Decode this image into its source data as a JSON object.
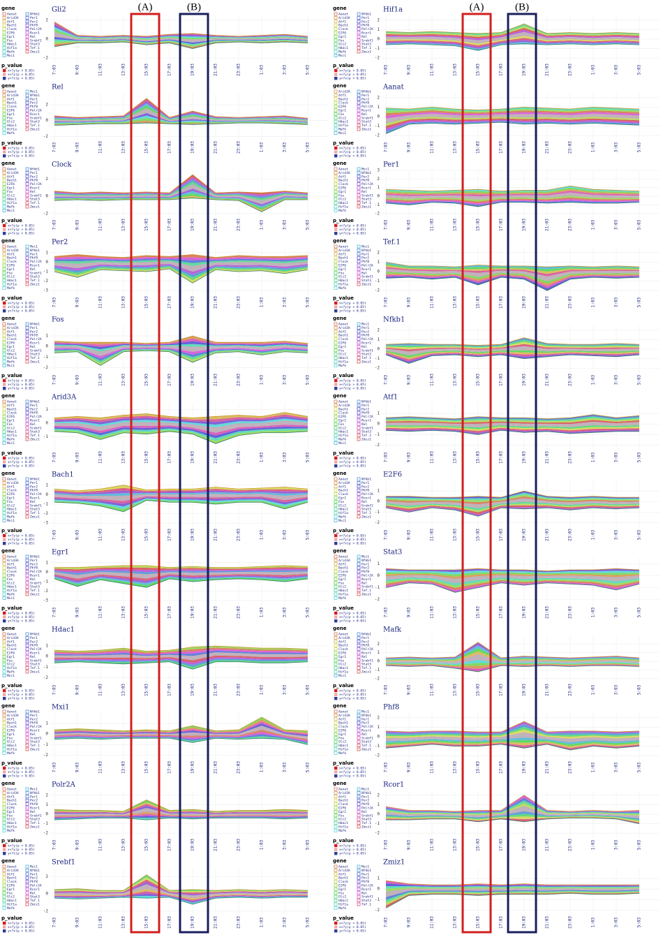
{
  "chart_data": {
    "type": "stream",
    "annotations": [
      "(A)",
      "(B)"
    ],
    "x_ticks": [
      "7:03",
      "9:03",
      "11:03",
      "13:03",
      "15:03",
      "17:03",
      "19:03",
      "21:03",
      "23:03",
      "1:03",
      "3:03",
      "5:03"
    ],
    "gene_legend_title": "gene",
    "p_value_title": "p_value",
    "p_value_labels": [
      "x>?y(p < 0.05)",
      "x<?y(p > 0.05)",
      "y>?x(p < 0.05)"
    ],
    "p_value_colors": [
      "#d7191c",
      "#f4a6a6",
      "#2c3e99"
    ],
    "genes": [
      "Aanat",
      "Arid3A",
      "Atf1",
      "Bach1",
      "Clock",
      "E2F6",
      "Egr1",
      "Fos",
      "Gli2",
      "Hdac1",
      "Hif1a",
      "Mafk",
      "Mxi1",
      "Nfkb1",
      "Per1",
      "Per2",
      "Phf8",
      "Polr2A",
      "Rcor1",
      "Rel",
      "Srebf1",
      "Stat3",
      "Tef.1",
      "Zmiz1"
    ],
    "panels": [
      {
        "title": "Gli2",
        "ylim": [
          -2.5,
          2.5
        ],
        "yticks": [
          -2,
          0,
          2
        ],
        "upper": [
          1.8,
          0.4,
          0.3,
          0.4,
          0.3,
          0.5,
          0.6,
          0.4,
          0.3,
          0.4,
          0.5,
          0.3
        ],
        "lower": [
          -0.8,
          -0.4,
          -0.4,
          -0.3,
          -0.6,
          -0.4,
          -1.0,
          -0.4,
          -0.3,
          -0.4,
          -0.3,
          -0.4
        ]
      },
      {
        "title": "Rel",
        "ylim": [
          -2.5,
          3.5
        ],
        "yticks": [
          -2,
          0,
          2
        ],
        "upper": [
          0.6,
          0.4,
          0.5,
          0.6,
          2.8,
          0.4,
          1.2,
          0.5,
          0.4,
          0.5,
          0.6,
          0.3
        ],
        "lower": [
          -0.6,
          -0.5,
          -0.4,
          -0.4,
          -0.3,
          -0.4,
          -0.5,
          -0.4,
          -0.3,
          -0.3,
          -0.4,
          -0.5
        ]
      },
      {
        "title": "Clock",
        "ylim": [
          -2.5,
          3
        ],
        "yticks": [
          -2,
          0,
          2
        ],
        "upper": [
          0.6,
          0.4,
          0.5,
          0.4,
          0.5,
          0.4,
          2.5,
          0.4,
          0.5,
          0.4,
          0.6,
          0.4
        ],
        "lower": [
          -0.5,
          -0.4,
          -0.5,
          -0.4,
          -0.4,
          -0.4,
          -0.2,
          -0.4,
          -0.5,
          -1.8,
          -0.4,
          -0.4
        ]
      },
      {
        "title": "Per2",
        "ylim": [
          -3.5,
          1.5
        ],
        "yticks": [
          -3,
          -2,
          -1,
          0,
          1
        ],
        "upper": [
          0.6,
          0.8,
          0.6,
          0.5,
          0.7,
          0.6,
          0.8,
          0.5,
          0.7,
          0.6,
          0.6,
          0.7
        ],
        "lower": [
          -1.0,
          -1.6,
          -0.8,
          -0.9,
          -1.0,
          -0.7,
          -2.2,
          -0.8,
          -1.0,
          -0.9,
          -1.2,
          -0.8
        ]
      },
      {
        "title": "Fos",
        "ylim": [
          -2.5,
          2
        ],
        "yticks": [
          -2,
          -1,
          0,
          1
        ],
        "upper": [
          0.5,
          0.4,
          0.4,
          0.4,
          0.3,
          0.4,
          1.0,
          0.4,
          0.4,
          0.4,
          0.5,
          0.3
        ],
        "lower": [
          -0.6,
          -0.5,
          -1.8,
          -0.5,
          -0.4,
          -0.5,
          -1.5,
          -0.6,
          -0.5,
          -0.8,
          -0.5,
          -0.6
        ]
      },
      {
        "title": "Arid3A",
        "ylim": [
          -2,
          1.5
        ],
        "yticks": [
          -1,
          0,
          1
        ],
        "upper": [
          0.4,
          0.5,
          0.4,
          0.6,
          0.7,
          0.5,
          0.4,
          0.5,
          0.6,
          0.5,
          0.8,
          0.5
        ],
        "lower": [
          -0.6,
          -0.7,
          -1.2,
          -0.7,
          -0.8,
          -0.6,
          -0.8,
          -1.5,
          -0.9,
          -0.7,
          -0.7,
          -0.6
        ]
      },
      {
        "title": "Bach1",
        "ylim": [
          -3.5,
          1.5
        ],
        "yticks": [
          -3,
          -2,
          -1,
          0,
          1
        ],
        "upper": [
          0.6,
          0.4,
          0.6,
          1.0,
          0.5,
          0.6,
          0.6,
          0.8,
          0.6,
          0.7,
          0.8,
          0.6
        ],
        "lower": [
          -0.8,
          -0.9,
          -1.2,
          -1.8,
          -0.6,
          -0.8,
          -0.8,
          -1.0,
          -0.8,
          -0.8,
          -1.5,
          -0.8
        ]
      },
      {
        "title": "Egr1",
        "ylim": [
          -3.5,
          1.5
        ],
        "yticks": [
          -3,
          -2,
          -1,
          0,
          1
        ],
        "upper": [
          0.5,
          0.5,
          0.6,
          0.7,
          0.7,
          0.5,
          0.6,
          0.5,
          0.5,
          0.6,
          0.7,
          0.6
        ],
        "lower": [
          -0.7,
          -1.5,
          -0.8,
          -1.2,
          -1.6,
          -0.7,
          -1.0,
          -0.8,
          -0.7,
          -0.8,
          -1.0,
          -0.7
        ]
      },
      {
        "title": "Hdac1",
        "ylim": [
          -2.5,
          2
        ],
        "yticks": [
          -2,
          -1,
          0,
          1
        ],
        "upper": [
          0.6,
          0.5,
          0.6,
          0.8,
          0.5,
          0.6,
          0.9,
          1.0,
          0.9,
          0.8,
          0.8,
          0.7
        ],
        "lower": [
          -0.6,
          -0.5,
          -0.6,
          -0.7,
          -0.6,
          -0.5,
          -1.2,
          -0.5,
          -0.5,
          -0.6,
          -0.6,
          -0.5
        ]
      },
      {
        "title": "Mxi1",
        "ylim": [
          -2.5,
          2
        ],
        "yticks": [
          -2,
          -1,
          0,
          1
        ],
        "upper": [
          0.4,
          0.5,
          0.4,
          0.3,
          0.4,
          0.3,
          0.8,
          0.3,
          0.4,
          1.6,
          0.4,
          0.3
        ],
        "lower": [
          -0.5,
          -0.4,
          -0.5,
          -0.4,
          -0.4,
          -0.4,
          -0.8,
          -0.4,
          -0.5,
          -0.4,
          -0.5,
          -1.0
        ]
      },
      {
        "title": "Polr2A",
        "ylim": [
          -2.5,
          2.5
        ],
        "yticks": [
          -2,
          -1,
          0,
          1,
          2
        ],
        "upper": [
          0.5,
          0.4,
          0.4,
          0.3,
          1.5,
          0.4,
          0.5,
          0.3,
          0.4,
          0.4,
          0.5,
          0.4
        ],
        "lower": [
          -0.6,
          -0.5,
          -0.4,
          -0.4,
          -0.6,
          -0.4,
          -0.5,
          -0.4,
          -0.4,
          -0.4,
          -0.5,
          -0.4
        ]
      },
      {
        "title": "Srebf1",
        "ylim": [
          -2.5,
          3
        ],
        "yticks": [
          -2,
          0,
          2
        ],
        "upper": [
          0.5,
          0.6,
          0.4,
          0.4,
          2.2,
          0.4,
          0.5,
          0.4,
          0.5,
          0.4,
          0.5,
          0.4
        ],
        "lower": [
          -0.5,
          -0.6,
          -0.5,
          -0.4,
          -0.5,
          -0.4,
          -1.2,
          -0.5,
          -0.4,
          -0.5,
          -0.4,
          -0.4
        ]
      },
      {
        "title": "Hif1a",
        "ylim": [
          -2.5,
          2.5
        ],
        "yticks": [
          -2,
          -1,
          0,
          1,
          2
        ],
        "upper": [
          0.8,
          0.7,
          0.8,
          0.7,
          0.6,
          0.7,
          1.6,
          0.6,
          0.7,
          0.6,
          0.7,
          0.6
        ],
        "lower": [
          -0.6,
          -0.5,
          -0.6,
          -0.7,
          -1.2,
          -0.6,
          -0.5,
          -0.6,
          -0.5,
          -0.6,
          -0.5,
          -0.6
        ]
      },
      {
        "title": "Aanat",
        "ylim": [
          -2.5,
          2.5
        ],
        "yticks": [
          -2,
          -1,
          0,
          1,
          2
        ],
        "upper": [
          0.9,
          0.8,
          1.0,
          0.8,
          0.7,
          0.8,
          1.0,
          0.9,
          0.8,
          1.0,
          0.9,
          0.8
        ],
        "lower": [
          -1.8,
          -0.8,
          -0.7,
          -0.8,
          -0.7,
          -0.6,
          -0.8,
          -0.7,
          -0.8,
          -0.7,
          -0.8,
          -0.9
        ]
      },
      {
        "title": "Per1",
        "ylim": [
          -2.5,
          3
        ],
        "yticks": [
          -2,
          -1,
          0,
          1,
          2,
          3
        ],
        "upper": [
          0.8,
          0.7,
          0.6,
          0.7,
          0.8,
          0.6,
          0.7,
          0.7,
          1.2,
          0.8,
          0.7,
          0.6
        ],
        "lower": [
          -0.8,
          -1.0,
          -0.7,
          -0.8,
          -1.2,
          -0.7,
          -0.7,
          -0.8,
          -0.7,
          -0.8,
          -0.8,
          -0.7
        ]
      },
      {
        "title": "Tef.1",
        "ylim": [
          -2.5,
          2.5
        ],
        "yticks": [
          -2,
          -1,
          0,
          1,
          2
        ],
        "upper": [
          1.0,
          0.6,
          0.6,
          0.5,
          0.7,
          0.6,
          0.6,
          0.5,
          0.6,
          0.5,
          0.6,
          0.5
        ],
        "lower": [
          -0.7,
          -0.6,
          -0.8,
          -0.6,
          -1.4,
          -0.6,
          -0.8,
          -2.0,
          -0.8,
          -0.6,
          -0.7,
          -0.6
        ]
      },
      {
        "title": "Nfkb1",
        "ylim": [
          -2.5,
          2.5
        ],
        "yticks": [
          -2,
          -1,
          0,
          1,
          2
        ],
        "upper": [
          0.5,
          0.6,
          0.5,
          0.5,
          0.4,
          0.5,
          1.2,
          0.6,
          0.5,
          0.5,
          0.6,
          0.5
        ],
        "lower": [
          -0.6,
          -1.5,
          -0.7,
          -0.6,
          -0.8,
          -0.6,
          -1.0,
          -0.8,
          -0.6,
          -0.7,
          -0.8,
          -0.6
        ]
      },
      {
        "title": "Atf1",
        "ylim": [
          -2.5,
          2
        ],
        "yticks": [
          -2,
          -1,
          0,
          1
        ],
        "upper": [
          0.6,
          0.7,
          0.6,
          0.5,
          0.7,
          0.6,
          0.6,
          0.5,
          0.6,
          0.9,
          0.6,
          0.8
        ],
        "lower": [
          -0.6,
          -0.7,
          -0.6,
          -0.7,
          -1.0,
          -0.6,
          -0.8,
          -0.7,
          -0.9,
          -0.8,
          -0.7,
          -0.7
        ]
      },
      {
        "title": "E2F6",
        "ylim": [
          -2.5,
          2
        ],
        "yticks": [
          -2,
          -1,
          0,
          1
        ],
        "upper": [
          0.5,
          0.5,
          0.4,
          0.4,
          0.5,
          0.4,
          1.0,
          0.5,
          0.4,
          0.5,
          0.4,
          0.4
        ],
        "lower": [
          -0.6,
          -1.0,
          -0.6,
          -0.8,
          -1.4,
          -0.6,
          -0.7,
          -0.6,
          -0.8,
          -0.6,
          -0.7,
          -0.6
        ]
      },
      {
        "title": "Stat3",
        "ylim": [
          -2.5,
          1.5
        ],
        "yticks": [
          -2,
          -1,
          0,
          1
        ],
        "upper": [
          0.6,
          0.5,
          0.5,
          0.5,
          0.6,
          0.5,
          0.5,
          0.4,
          0.5,
          0.5,
          0.6,
          0.5
        ],
        "lower": [
          -1.0,
          -0.6,
          -0.7,
          -1.4,
          -1.0,
          -0.6,
          -0.8,
          -0.6,
          -0.7,
          -0.8,
          -1.2,
          -0.7
        ]
      },
      {
        "title": "Mafk",
        "ylim": [
          -2.5,
          3
        ],
        "yticks": [
          -2,
          -1,
          0,
          1,
          2
        ],
        "upper": [
          0.4,
          0.5,
          0.4,
          0.5,
          2.2,
          0.4,
          0.6,
          0.5,
          0.4,
          0.5,
          0.6,
          0.4
        ],
        "lower": [
          -0.5,
          -0.6,
          -0.5,
          -0.8,
          -1.2,
          -0.5,
          -0.6,
          -0.5,
          -0.6,
          -0.5,
          -0.5,
          -0.6
        ]
      },
      {
        "title": "Phf8",
        "ylim": [
          -2.5,
          2.5
        ],
        "yticks": [
          -2,
          -1,
          0,
          1,
          2
        ],
        "upper": [
          0.6,
          0.5,
          0.6,
          0.6,
          0.5,
          0.5,
          1.6,
          0.5,
          0.6,
          0.6,
          0.5,
          0.6
        ],
        "lower": [
          -1.2,
          -1.0,
          -0.8,
          -1.0,
          -1.0,
          -0.8,
          -1.2,
          -0.8,
          -1.4,
          -1.0,
          -1.2,
          -1.0
        ]
      },
      {
        "title": "Rcor1",
        "ylim": [
          -2.5,
          2.5
        ],
        "yticks": [
          -2,
          -1,
          0,
          1,
          2
        ],
        "upper": [
          0.8,
          0.4,
          0.4,
          0.3,
          0.4,
          0.4,
          2.0,
          0.4,
          0.3,
          0.4,
          0.3,
          0.4
        ],
        "lower": [
          -0.6,
          -0.6,
          -0.5,
          -0.5,
          -0.8,
          -0.5,
          -0.8,
          -0.5,
          -0.4,
          -0.4,
          -0.5,
          -1.0
        ]
      },
      {
        "title": "Zmiz1",
        "ylim": [
          -2.5,
          2
        ],
        "yticks": [
          -2,
          -1,
          0,
          1
        ],
        "upper": [
          0.8,
          0.5,
          0.4,
          0.4,
          0.5,
          0.4,
          0.5,
          0.4,
          0.4,
          0.4,
          0.4,
          0.4
        ],
        "lower": [
          -1.8,
          -0.6,
          -0.5,
          -0.5,
          -0.6,
          -0.5,
          -0.5,
          -0.5,
          -0.4,
          -0.5,
          -0.5,
          -0.4
        ]
      }
    ]
  }
}
